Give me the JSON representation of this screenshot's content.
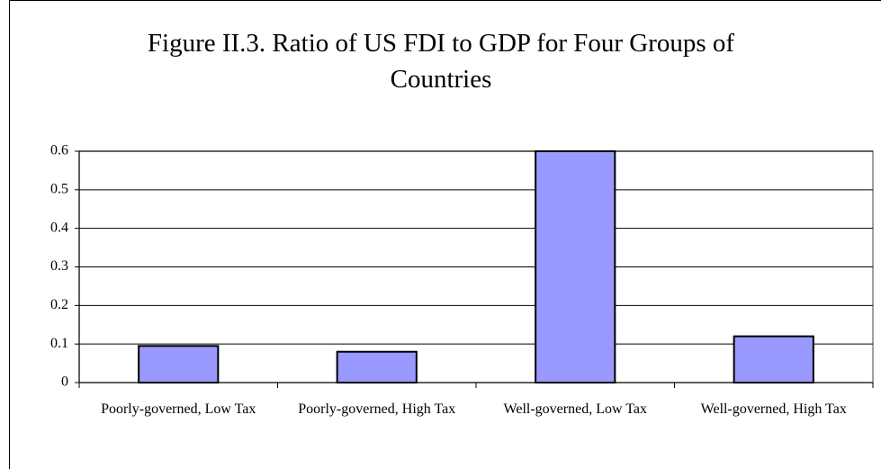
{
  "chart_data": {
    "type": "bar",
    "title": "Figure II.3. Ratio of US FDI to GDP for Four Groups of Countries",
    "categories": [
      "Poorly-governed, Low Tax",
      "Poorly-governed, High Tax",
      "Well-governed, Low Tax",
      "Well-governed, High Tax"
    ],
    "values": [
      0.095,
      0.08,
      0.6,
      0.12
    ],
    "color": "#9999ff",
    "ylim": [
      0,
      0.6
    ],
    "yticks": [
      0,
      0.1,
      0.2,
      0.3,
      0.4,
      0.5,
      0.6
    ],
    "grid": true
  }
}
